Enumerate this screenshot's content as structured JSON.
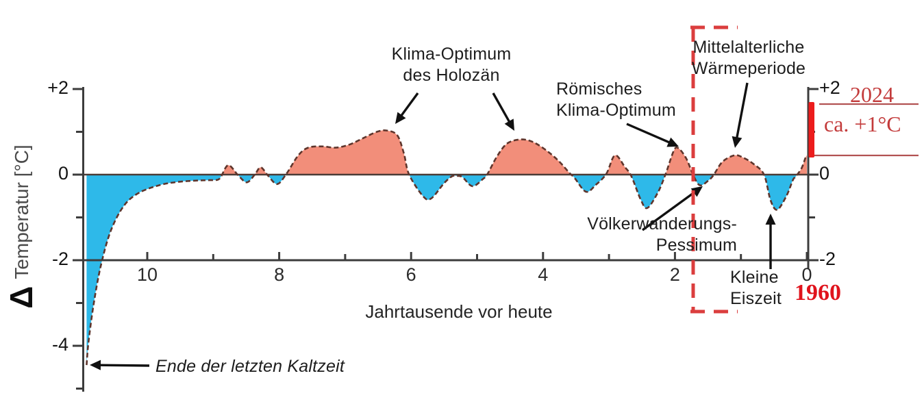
{
  "chart_data": {
    "type": "area",
    "title": "",
    "xlabel": "Jahrtausende vor heute",
    "ylabel_delta": "Δ",
    "ylabel": "Temperatur [°C]",
    "x_axis": {
      "direction": "reversed",
      "range_kyr_before_present": [
        11,
        0
      ],
      "major_ticks": [
        10,
        8,
        6,
        4,
        2,
        0
      ],
      "minor_ticks": [
        9,
        7,
        5,
        3,
        1
      ]
    },
    "y_axis": {
      "unit": "°C",
      "range": [
        -5,
        2
      ],
      "left_major_ticks": [
        2,
        0,
        -2,
        -4
      ],
      "left_minor_ticks": [
        1,
        -1,
        -3,
        -5
      ],
      "right_major_ticks": [
        2,
        0,
        -2
      ],
      "right_minor_ticks": [
        1,
        -1
      ]
    },
    "series": [
      {
        "name": "Temperaturabweichung Δ [°C] über Jahrtausende vor heute",
        "points": [
          [
            10.92,
            -4.45
          ],
          [
            10.89,
            -3.9
          ],
          [
            10.81,
            -3.0
          ],
          [
            10.7,
            -2.1
          ],
          [
            10.55,
            -1.3
          ],
          [
            10.35,
            -0.72
          ],
          [
            10.12,
            -0.42
          ],
          [
            9.8,
            -0.24
          ],
          [
            9.53,
            -0.17
          ],
          [
            9.27,
            -0.14
          ],
          [
            9.06,
            -0.13
          ],
          [
            8.93,
            -0.12
          ],
          [
            8.88,
            -0.04
          ],
          [
            8.77,
            0.22
          ],
          [
            8.62,
            -0.02
          ],
          [
            8.49,
            -0.18
          ],
          [
            8.37,
            0.0
          ],
          [
            8.28,
            0.17
          ],
          [
            8.17,
            -0.02
          ],
          [
            8.03,
            -0.22
          ],
          [
            7.89,
            0.02
          ],
          [
            7.71,
            0.45
          ],
          [
            7.56,
            0.63
          ],
          [
            7.35,
            0.66
          ],
          [
            7.14,
            0.63
          ],
          [
            6.94,
            0.7
          ],
          [
            6.73,
            0.85
          ],
          [
            6.52,
            1.0
          ],
          [
            6.37,
            1.03
          ],
          [
            6.21,
            0.92
          ],
          [
            6.11,
            0.5
          ],
          [
            6.03,
            0.0
          ],
          [
            5.81,
            -0.52
          ],
          [
            5.69,
            -0.55
          ],
          [
            5.5,
            -0.2
          ],
          [
            5.38,
            -0.04
          ],
          [
            5.3,
            -0.03
          ],
          [
            5.22,
            -0.06
          ],
          [
            5.07,
            -0.27
          ],
          [
            4.91,
            -0.1
          ],
          [
            4.84,
            0.02
          ],
          [
            4.7,
            0.42
          ],
          [
            4.55,
            0.72
          ],
          [
            4.36,
            0.82
          ],
          [
            4.18,
            0.78
          ],
          [
            3.98,
            0.6
          ],
          [
            3.77,
            0.33
          ],
          [
            3.6,
            0.04
          ],
          [
            3.52,
            -0.08
          ],
          [
            3.35,
            -0.4
          ],
          [
            3.2,
            -0.24
          ],
          [
            3.04,
            0.02
          ],
          [
            2.91,
            0.45
          ],
          [
            2.76,
            0.18
          ],
          [
            2.66,
            -0.04
          ],
          [
            2.52,
            -0.58
          ],
          [
            2.42,
            -0.78
          ],
          [
            2.26,
            -0.42
          ],
          [
            2.14,
            0.02
          ],
          [
            2.02,
            0.55
          ],
          [
            1.95,
            0.62
          ],
          [
            1.83,
            0.38
          ],
          [
            1.72,
            -0.02
          ],
          [
            1.62,
            -0.25
          ],
          [
            1.48,
            -0.12
          ],
          [
            1.41,
            0.0
          ],
          [
            1.28,
            0.3
          ],
          [
            1.1,
            0.45
          ],
          [
            0.97,
            0.4
          ],
          [
            0.81,
            0.25
          ],
          [
            0.65,
            0.0
          ],
          [
            0.55,
            -0.6
          ],
          [
            0.45,
            -0.82
          ],
          [
            0.31,
            -0.5
          ],
          [
            0.21,
            -0.12
          ],
          [
            0.17,
            -0.05
          ],
          [
            0.08,
            0.15
          ],
          [
            0.02,
            0.4
          ],
          [
            0.0,
            0.45
          ]
        ]
      }
    ],
    "colors": {
      "fill_above_zero": "#F28E7A",
      "fill_below_zero": "#2EB9E9",
      "curve_stroke": "#5E352C",
      "axis": "#3C3C3C",
      "zero_line": "#4A3B36"
    },
    "legend": "none",
    "grid": false
  },
  "annotations": {
    "klima_optimum": "Klima-Optimum\ndes Holozän",
    "roemisches": "Römisches\nKlima-Optimum",
    "mittelalterliche": "Mittelalterliche\nWärmeperiode",
    "voelkerwanderung": "Völkerwanderungs-\nPessimum",
    "kleine_eiszeit": "Kleine\nEiszeit",
    "ende_kaltzeit": "Ende der letzten Kaltzeit"
  },
  "overlay": {
    "year_2024": "2024",
    "warming_label": "ca. +1°C",
    "year_1960": "1960",
    "colors": {
      "dashed_box": "#DB3E3E",
      "warming_bar": "#EC1C1C",
      "ref_lines": "#B25252",
      "serif_text": "#C33B3B",
      "text_1960": "#E0131C"
    }
  }
}
